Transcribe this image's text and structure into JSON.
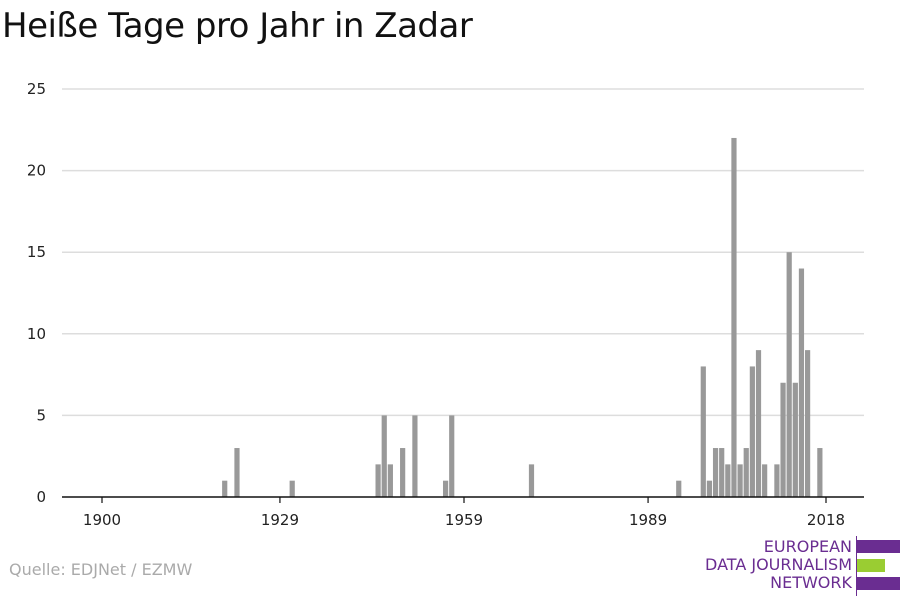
{
  "title": "Heiße Tage pro Jahr in Zadar",
  "source": "Quelle: EDJNet / EZMW",
  "logo": {
    "lines": [
      "EUROPEAN",
      "DATA JOURNALISM",
      "NETWORK"
    ],
    "colors": {
      "purple": "#6a2d91",
      "green": "#9acd32"
    }
  },
  "colors": {
    "bar": "#999999",
    "grid": "#dddddd",
    "axis": "#111111"
  },
  "chart_data": {
    "type": "bar",
    "title": "Heiße Tage pro Jahr in Zadar",
    "xlabel": "",
    "ylabel": "",
    "xlim": [
      1896,
      2022
    ],
    "ylim": [
      0,
      25
    ],
    "x_ticks": [
      1900,
      1929,
      1959,
      1989,
      2018
    ],
    "y_ticks": [
      0,
      5,
      10,
      15,
      20,
      25
    ],
    "grid": true,
    "x": [
      1920,
      1922,
      1931,
      1945,
      1946,
      1947,
      1949,
      1951,
      1956,
      1957,
      1970,
      1994,
      1998,
      1999,
      2000,
      2001,
      2002,
      2003,
      2004,
      2005,
      2006,
      2007,
      2008,
      2010,
      2011,
      2012,
      2013,
      2014,
      2015,
      2017,
      2019,
      2020
    ],
    "values": [
      1,
      3,
      1,
      2,
      5,
      2,
      3,
      5,
      1,
      5,
      2,
      1,
      8,
      1,
      3,
      3,
      2,
      22,
      2,
      3,
      8,
      9,
      2,
      2,
      7,
      15,
      7,
      14,
      9,
      3,
      0,
      0
    ]
  }
}
